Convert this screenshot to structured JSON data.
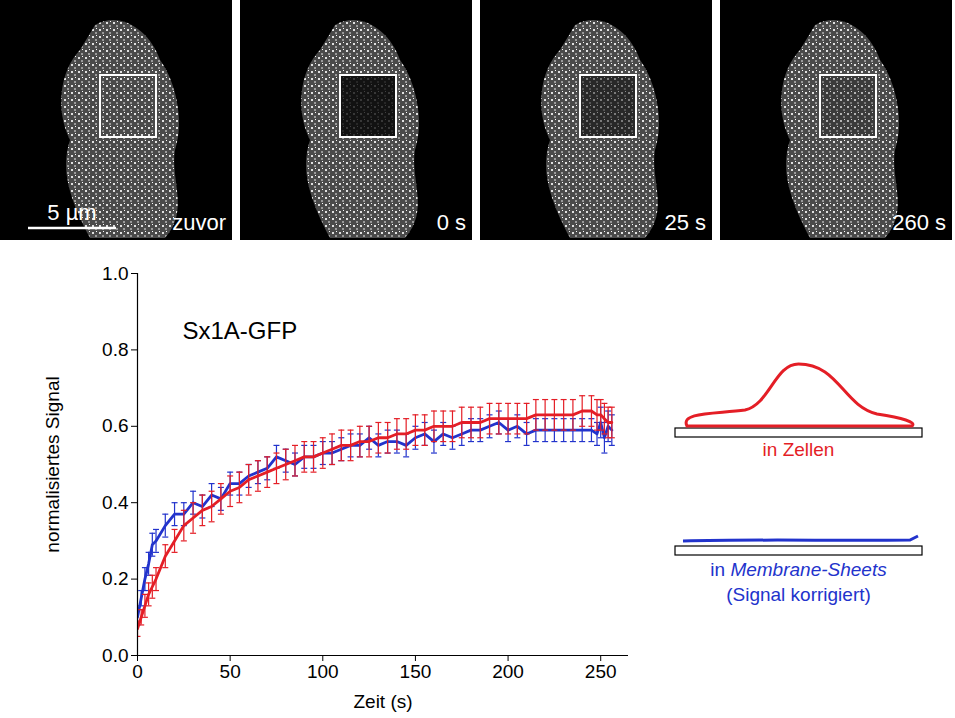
{
  "chart_data": {
    "type": "line",
    "title": "Sx1A-GFP",
    "x_label": "Zeit (s)",
    "y_label": "normalisiertes Signal",
    "x": [
      0,
      2,
      4,
      6,
      8,
      10,
      15,
      20,
      25,
      30,
      35,
      40,
      45,
      50,
      55,
      60,
      65,
      70,
      75,
      80,
      85,
      90,
      95,
      100,
      105,
      110,
      115,
      120,
      125,
      130,
      135,
      140,
      145,
      150,
      155,
      160,
      165,
      170,
      175,
      180,
      185,
      190,
      195,
      200,
      205,
      210,
      215,
      220,
      225,
      230,
      235,
      240,
      245,
      248,
      250,
      252,
      254,
      256
    ],
    "series": [
      {
        "name": "in Zellen",
        "color": "#e41e26",
        "values": [
          0.07,
          0.1,
          0.13,
          0.16,
          0.18,
          0.2,
          0.26,
          0.3,
          0.34,
          0.36,
          0.38,
          0.39,
          0.41,
          0.43,
          0.44,
          0.46,
          0.47,
          0.48,
          0.49,
          0.5,
          0.51,
          0.52,
          0.52,
          0.53,
          0.54,
          0.55,
          0.55,
          0.56,
          0.56,
          0.57,
          0.57,
          0.58,
          0.58,
          0.59,
          0.59,
          0.6,
          0.6,
          0.6,
          0.61,
          0.61,
          0.61,
          0.62,
          0.62,
          0.62,
          0.62,
          0.62,
          0.63,
          0.63,
          0.63,
          0.63,
          0.63,
          0.64,
          0.64,
          0.63,
          0.63,
          0.62,
          0.61,
          0.61
        ],
        "errors": [
          0.02,
          0.02,
          0.03,
          0.03,
          0.03,
          0.03,
          0.03,
          0.03,
          0.04,
          0.04,
          0.04,
          0.04,
          0.04,
          0.04,
          0.04,
          0.04,
          0.04,
          0.04,
          0.04,
          0.04,
          0.04,
          0.04,
          0.04,
          0.04,
          0.04,
          0.04,
          0.04,
          0.04,
          0.04,
          0.04,
          0.04,
          0.04,
          0.04,
          0.04,
          0.04,
          0.04,
          0.04,
          0.04,
          0.04,
          0.04,
          0.04,
          0.04,
          0.04,
          0.04,
          0.04,
          0.04,
          0.04,
          0.04,
          0.04,
          0.04,
          0.04,
          0.04,
          0.04,
          0.04,
          0.04,
          0.04,
          0.04,
          0.04
        ]
      },
      {
        "name": "in Membrane-Sheets",
        "note": "(Signal korrigiert)",
        "color": "#2233cc",
        "values": [
          0.1,
          0.15,
          0.2,
          0.24,
          0.29,
          0.3,
          0.34,
          0.37,
          0.37,
          0.4,
          0.39,
          0.42,
          0.41,
          0.45,
          0.45,
          0.47,
          0.48,
          0.49,
          0.52,
          0.51,
          0.5,
          0.52,
          0.52,
          0.53,
          0.53,
          0.54,
          0.55,
          0.55,
          0.57,
          0.55,
          0.56,
          0.56,
          0.55,
          0.57,
          0.58,
          0.56,
          0.58,
          0.57,
          0.58,
          0.59,
          0.59,
          0.6,
          0.61,
          0.59,
          0.6,
          0.58,
          0.59,
          0.59,
          0.59,
          0.59,
          0.59,
          0.59,
          0.59,
          0.58,
          0.61,
          0.57,
          0.6,
          0.59
        ],
        "errors": [
          0.02,
          0.02,
          0.03,
          0.03,
          0.03,
          0.03,
          0.03,
          0.03,
          0.03,
          0.03,
          0.03,
          0.03,
          0.03,
          0.03,
          0.03,
          0.03,
          0.03,
          0.03,
          0.03,
          0.03,
          0.03,
          0.03,
          0.03,
          0.03,
          0.03,
          0.03,
          0.03,
          0.03,
          0.03,
          0.03,
          0.03,
          0.03,
          0.03,
          0.03,
          0.03,
          0.03,
          0.03,
          0.03,
          0.03,
          0.03,
          0.03,
          0.03,
          0.03,
          0.03,
          0.03,
          0.03,
          0.03,
          0.03,
          0.03,
          0.03,
          0.03,
          0.03,
          0.03,
          0.03,
          0.04,
          0.04,
          0.04,
          0.04
        ]
      }
    ],
    "xlim": [
      0,
      265
    ],
    "xticks": [
      0,
      50,
      100,
      150,
      200,
      250
    ],
    "ylim": [
      0,
      1
    ],
    "yticks": [
      {
        "value": 0,
        "label": "0.0"
      },
      0.2,
      0.4,
      0.6,
      0.8,
      {
        "value": 1,
        "label": "1.0"
      }
    ],
    "legend": "right"
  },
  "image_panels": {
    "labels": [
      "zuvor",
      "0 s",
      "25 s",
      "260 s"
    ],
    "scale_bar": "5 µm"
  }
}
